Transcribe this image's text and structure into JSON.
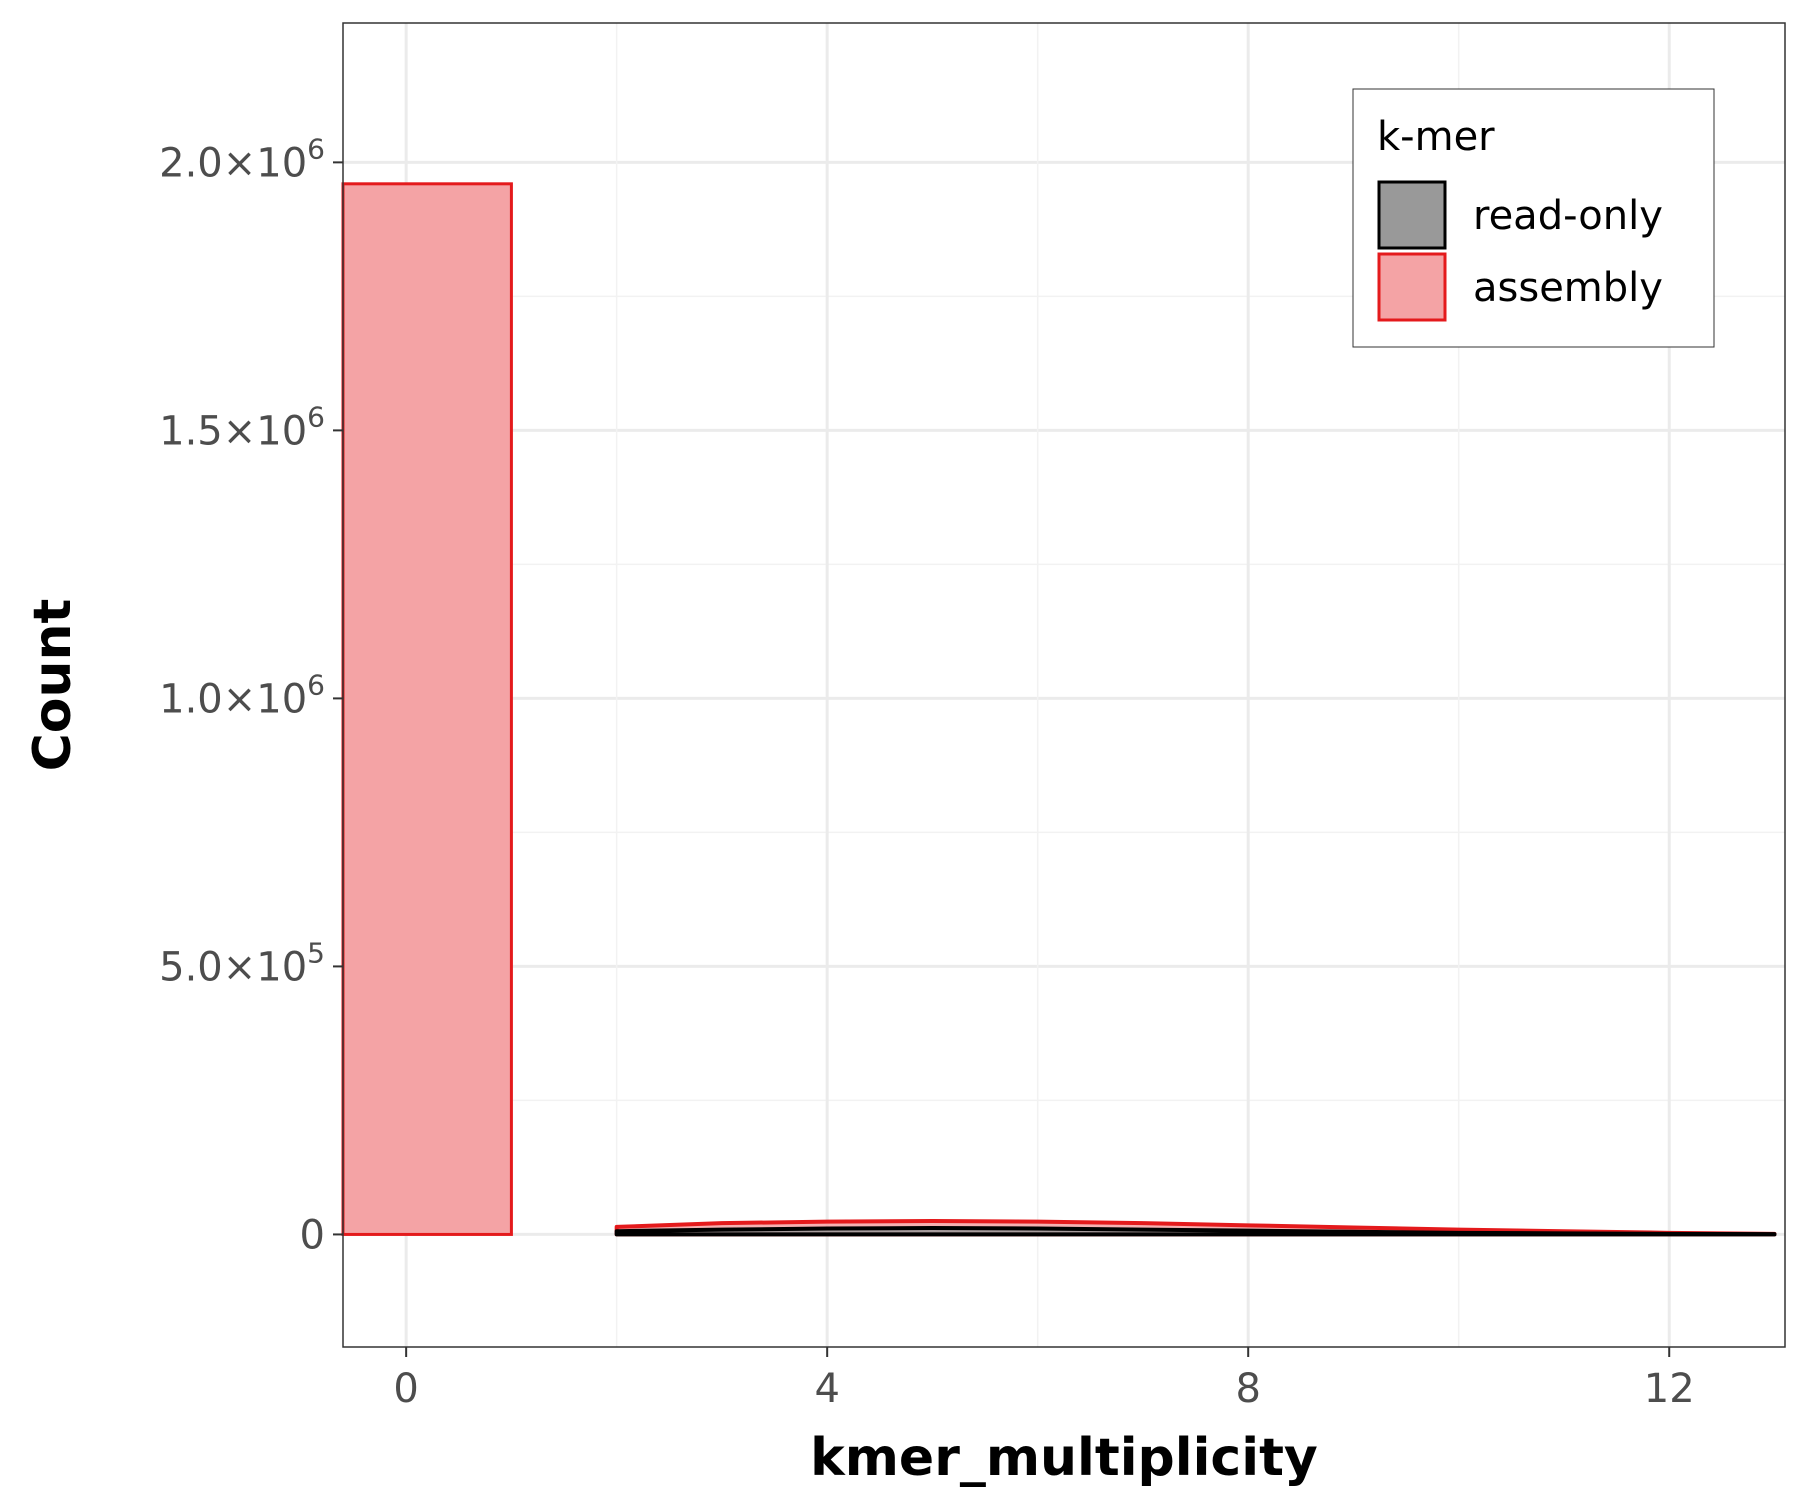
{
  "chart_data": {
    "type": "area",
    "xlabel": "kmer_multiplicity",
    "ylabel": "Count",
    "xlim": [
      -0.6,
      13.1
    ],
    "ylim": [
      -210000,
      2260000
    ],
    "x_ticks": [
      0,
      4,
      8,
      12
    ],
    "x_tick_labels": [
      "0",
      "4",
      "8",
      "12"
    ],
    "y_ticks": [
      0,
      500000,
      1000000,
      1500000,
      2000000
    ],
    "y_tick_labels": [
      {
        "mantissa": "0",
        "exponent": ""
      },
      {
        "mantissa": "5.0",
        "exponent": "5"
      },
      {
        "mantissa": "1.0",
        "exponent": "6"
      },
      {
        "mantissa": "1.5",
        "exponent": "6"
      },
      {
        "mantissa": "2.0",
        "exponent": "6"
      }
    ],
    "grid": true,
    "legend": {
      "title": "k-mer",
      "position": "top-right",
      "entries": [
        {
          "label": "read-only",
          "fill": "#999999",
          "stroke": "#000000"
        },
        {
          "label": "assembly",
          "fill": "#f4a3a5",
          "stroke": "#e41a1c"
        }
      ]
    },
    "series": [
      {
        "name": "read-only",
        "fill": "#999999",
        "stroke": "#000000",
        "x": [
          2,
          3,
          4,
          5,
          6,
          7,
          8,
          9,
          10,
          11,
          12,
          13
        ],
        "values": [
          6000,
          9000,
          11000,
          12000,
          11000,
          9000,
          7000,
          5000,
          3000,
          2000,
          1000,
          500
        ]
      },
      {
        "name": "assembly",
        "fill": "#f4a3a5",
        "stroke": "#e41a1c",
        "bars": [
          {
            "x0": -0.6,
            "x1": 1,
            "value": 1960000
          }
        ],
        "x": [
          2,
          3,
          4,
          5,
          6,
          7,
          8,
          9,
          10,
          11,
          12,
          13
        ],
        "values": [
          14000,
          21000,
          24000,
          25000,
          24000,
          21000,
          17000,
          13000,
          9000,
          6000,
          3000,
          1000
        ]
      }
    ]
  }
}
